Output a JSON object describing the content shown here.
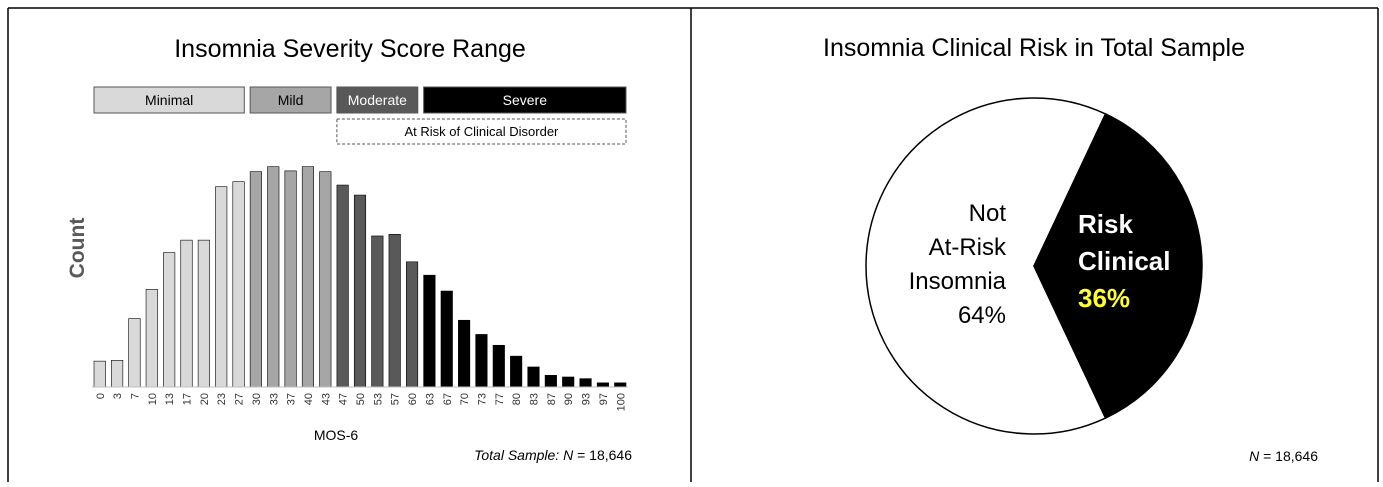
{
  "chart_data": [
    {
      "type": "bar",
      "title": "Insomnia Severity Score Range",
      "xlabel": "MOS-6",
      "ylabel": "Count",
      "footnote_prefix": "Total Sample: ",
      "footnote_n": "N",
      "footnote_value": " = 18,646",
      "severity_bands": [
        {
          "label": "Minimal",
          "fill": "#d9d9d9",
          "text_color": "#000000",
          "first_category": 0,
          "last_category": 8
        },
        {
          "label": "Mild",
          "fill": "#a6a6a6",
          "text_color": "#000000",
          "first_category": 9,
          "last_category": 13
        },
        {
          "label": "Moderate",
          "fill": "#595959",
          "text_color": "#ffffff",
          "first_category": 14,
          "last_category": 18
        },
        {
          "label": "Severe",
          "fill": "#000000",
          "text_color": "#ffffff",
          "first_category": 19,
          "last_category": 30
        }
      ],
      "risk_box": {
        "label": "At Risk of Clinical Disorder",
        "first_category": 14,
        "last_category": 30
      },
      "categories": [
        "0",
        "3",
        "7",
        "10",
        "13",
        "17",
        "20",
        "23",
        "27",
        "30",
        "33",
        "37",
        "40",
        "43",
        "47",
        "50",
        "53",
        "57",
        "60",
        "63",
        "67",
        "70",
        "73",
        "77",
        "80",
        "83",
        "87",
        "90",
        "93",
        "97",
        "100"
      ],
      "values": [
        31,
        32,
        82,
        117,
        161,
        176,
        176,
        240,
        246,
        258,
        264,
        259,
        264,
        258,
        242,
        230,
        181,
        183,
        150,
        134,
        115,
        80,
        63,
        50,
        37,
        24,
        14,
        12,
        10,
        5,
        5
      ],
      "colors": [
        "#d9d9d9",
        "#d9d9d9",
        "#d9d9d9",
        "#d9d9d9",
        "#d9d9d9",
        "#d9d9d9",
        "#d9d9d9",
        "#d9d9d9",
        "#d9d9d9",
        "#a6a6a6",
        "#a6a6a6",
        "#a6a6a6",
        "#a6a6a6",
        "#a6a6a6",
        "#595959",
        "#595959",
        "#595959",
        "#595959",
        "#595959",
        "#000000",
        "#000000",
        "#000000",
        "#000000",
        "#000000",
        "#000000",
        "#000000",
        "#000000",
        "#000000",
        "#000000",
        "#000000",
        "#000000"
      ],
      "ylim": [
        0,
        290
      ],
      "grid": false,
      "legend": "none"
    },
    {
      "type": "pie",
      "title": "Insomnia Clinical Risk in Total Sample",
      "slices": [
        {
          "name_lines": [
            "Not",
            "At-Risk",
            "Insomnia"
          ],
          "value": 64,
          "value_label": "64%",
          "fill": "#ffffff",
          "text_color": "#000000",
          "value_color": "#000000"
        },
        {
          "name_lines": [
            "Risk",
            "Clinical"
          ],
          "value": 36,
          "value_label": "36%",
          "fill": "#000000",
          "text_color": "#ffffff",
          "value_color": "#ffff33"
        }
      ],
      "footnote_n": "N",
      "footnote_value": " = 18,646",
      "legend": "none"
    }
  ]
}
